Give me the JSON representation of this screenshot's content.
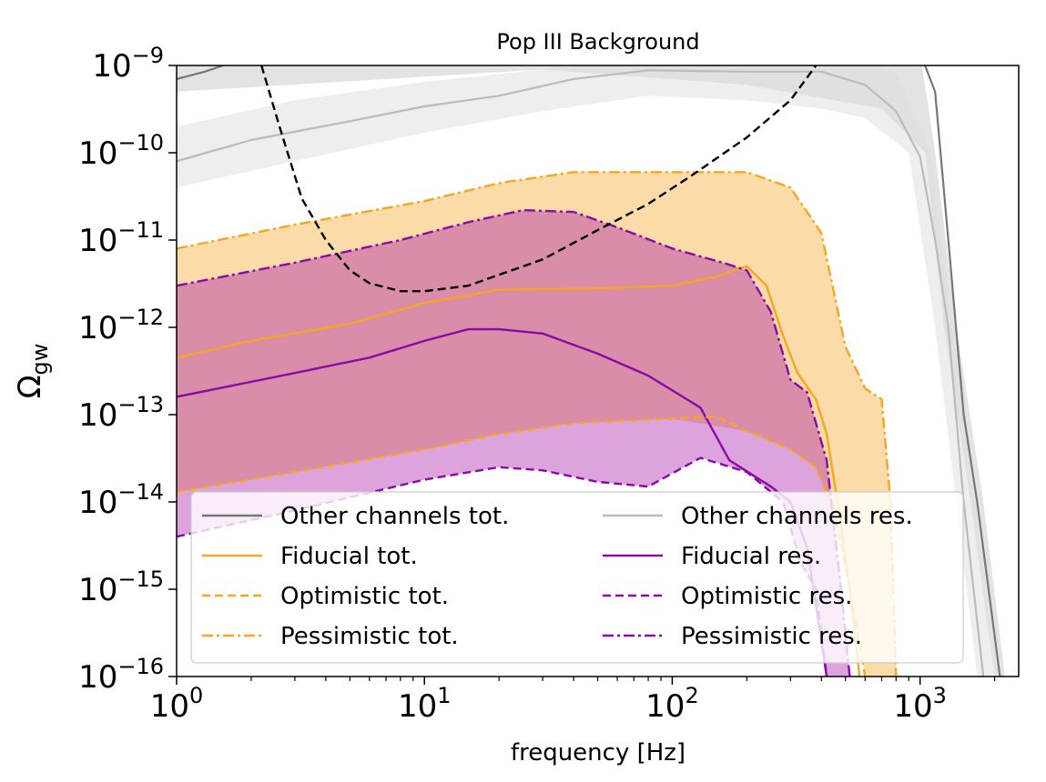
{
  "chart_data": {
    "type": "line",
    "title": "Pop III Background",
    "xlabel": "frequency [Hz]",
    "ylabel_main": "Ω",
    "ylabel_sub": "gw",
    "x_scale": "log",
    "y_scale": "log",
    "xlim": [
      1,
      2500
    ],
    "ylim": [
      1e-16,
      1e-09
    ],
    "x_ticks": [
      {
        "value": 1,
        "base": "10",
        "exp": "0"
      },
      {
        "value": 10,
        "base": "10",
        "exp": "1"
      },
      {
        "value": 100,
        "base": "10",
        "exp": "2"
      },
      {
        "value": 1000,
        "base": "10",
        "exp": "3"
      }
    ],
    "y_ticks": [
      {
        "value": 1e-16,
        "base": "10",
        "exp": "−16"
      },
      {
        "value": 1e-15,
        "base": "10",
        "exp": "−15"
      },
      {
        "value": 1e-14,
        "base": "10",
        "exp": "−14"
      },
      {
        "value": 1e-13,
        "base": "10",
        "exp": "−13"
      },
      {
        "value": 1e-12,
        "base": "10",
        "exp": "−12"
      },
      {
        "value": 1e-11,
        "base": "10",
        "exp": "−11"
      },
      {
        "value": 1e-10,
        "base": "10",
        "exp": "−10"
      },
      {
        "value": 1e-09,
        "base": "10",
        "exp": "−9"
      }
    ],
    "legend_position": "lower-right",
    "legend": [
      {
        "label": "Other channels tot.",
        "color": "#777777",
        "dash": "solid"
      },
      {
        "label": "Other channels res.",
        "color": "#bbbbbb",
        "dash": "solid"
      },
      {
        "label": "Fiducial tot.",
        "color": "#f5a623",
        "dash": "solid"
      },
      {
        "label": "Fiducial res.",
        "color": "#8b0aa5",
        "dash": "solid"
      },
      {
        "label": "Optimistic tot.",
        "color": "#f5a623",
        "dash": "dashed"
      },
      {
        "label": "Optimistic res.",
        "color": "#8b0aa5",
        "dash": "dashed"
      },
      {
        "label": "Pessimistic tot.",
        "color": "#f5a623",
        "dash": "dashdot"
      },
      {
        "label": "Pessimistic res.",
        "color": "#8b0aa5",
        "dash": "dashdot"
      }
    ],
    "bands": [
      {
        "name": "Other channels tot. band",
        "color": "#cccccc",
        "opacity": 0.55,
        "upper": [
          [
            1,
            1.4e-09
          ],
          [
            50,
            1.4e-09
          ],
          [
            1000,
            1.4e-09
          ],
          [
            1150,
            1e-10
          ],
          [
            1400,
            1e-12
          ],
          [
            1800,
            1e-14
          ],
          [
            2200,
            1e-16
          ]
        ],
        "lower": [
          [
            2000,
            1e-16
          ],
          [
            1600,
            1e-14
          ],
          [
            1250,
            1e-12
          ],
          [
            1050,
            1e-10
          ],
          [
            700,
            3.2e-10
          ],
          [
            200,
            6e-10
          ],
          [
            30,
            9e-10
          ],
          [
            1,
            5e-10
          ]
        ]
      },
      {
        "name": "Other channels res. band",
        "color": "#dddddd",
        "opacity": 0.5,
        "upper": [
          [
            1,
            2e-10
          ],
          [
            3,
            4e-10
          ],
          [
            10,
            6.5e-10
          ],
          [
            30,
            9e-10
          ],
          [
            80,
            1.4e-09
          ],
          [
            500,
            1.4e-09
          ],
          [
            800,
            8e-10
          ],
          [
            1100,
            1e-10
          ],
          [
            1350,
            1e-12
          ],
          [
            1650,
            1e-14
          ],
          [
            2000,
            1e-16
          ]
        ],
        "lower": [
          [
            1700,
            1e-16
          ],
          [
            1400,
            1e-14
          ],
          [
            1150,
            1e-12
          ],
          [
            900,
            1e-10
          ],
          [
            600,
            2.5e-10
          ],
          [
            400,
            3.2e-10
          ],
          [
            200,
            4e-10
          ],
          [
            80,
            4.5e-10
          ],
          [
            30,
            3e-10
          ],
          [
            10,
            1.7e-10
          ],
          [
            3,
            8e-11
          ],
          [
            1,
            4e-11
          ]
        ]
      },
      {
        "name": "Total band",
        "color": "#f5a623",
        "opacity": 0.4,
        "upper": [
          [
            1,
            8e-12
          ],
          [
            3,
            1.5e-11
          ],
          [
            10,
            2.8e-11
          ],
          [
            20,
            4.5e-11
          ],
          [
            40,
            6e-11
          ],
          [
            80,
            6e-11
          ],
          [
            200,
            6e-11
          ],
          [
            300,
            4e-11
          ],
          [
            400,
            1.2e-11
          ],
          [
            500,
            6e-13
          ],
          [
            600,
            2e-13
          ],
          [
            700,
            1.5e-13
          ],
          [
            760,
            1e-14
          ],
          [
            800,
            1e-16
          ]
        ],
        "lower": [
          [
            600,
            1e-16
          ],
          [
            520,
            1e-15
          ],
          [
            450,
            8e-15
          ],
          [
            380,
            2.5e-14
          ],
          [
            300,
            4e-14
          ],
          [
            200,
            6.5e-14
          ],
          [
            100,
            9e-14
          ],
          [
            40,
            8e-14
          ],
          [
            20,
            6e-14
          ],
          [
            10,
            4e-14
          ],
          [
            3,
            2.2e-14
          ],
          [
            1,
            1.3e-14
          ]
        ]
      },
      {
        "name": "Residual band",
        "color": "#a81aab",
        "opacity": 0.4,
        "upper": [
          [
            1,
            3e-12
          ],
          [
            3,
            5.5e-12
          ],
          [
            8,
            1e-11
          ],
          [
            15,
            1.6e-11
          ],
          [
            25,
            2.2e-11
          ],
          [
            40,
            2.1e-11
          ],
          [
            60,
            1.4e-11
          ],
          [
            100,
            8e-12
          ],
          [
            160,
            5.5e-12
          ],
          [
            200,
            4.5e-12
          ],
          [
            250,
            1.5e-12
          ],
          [
            300,
            2.5e-13
          ],
          [
            350,
            1.8e-13
          ],
          [
            420,
            3e-14
          ],
          [
            480,
            1e-15
          ],
          [
            520,
            1e-16
          ]
        ],
        "lower": [
          [
            420,
            1e-16
          ],
          [
            380,
            1e-15
          ],
          [
            330,
            2e-15
          ],
          [
            280,
            1e-14
          ],
          [
            200,
            2.2e-14
          ],
          [
            130,
            3.2e-14
          ],
          [
            80,
            1.5e-14
          ],
          [
            50,
            1.7e-14
          ],
          [
            30,
            2.3e-14
          ],
          [
            20,
            2.5e-14
          ],
          [
            10,
            1.8e-14
          ],
          [
            3,
            8e-15
          ],
          [
            1,
            4e-15
          ]
        ]
      }
    ],
    "series": [
      {
        "name": "Other channels tot.",
        "color": "#777777",
        "dash": "solid",
        "width": 2.2,
        "points": [
          [
            1,
            7e-10
          ],
          [
            1.3,
            8.5e-10
          ],
          [
            1.7,
            1.1e-09
          ],
          [
            3,
            1.4e-09
          ],
          [
            10,
            1.4e-09
          ],
          [
            1000,
            1.4e-09
          ],
          [
            1150,
            5e-10
          ],
          [
            1300,
            1e-11
          ],
          [
            1500,
            1e-13
          ],
          [
            1700,
            1e-14
          ],
          [
            2100,
            1e-16
          ]
        ]
      },
      {
        "name": "Other channels res.",
        "color": "#bbbbbb",
        "dash": "solid",
        "width": 2.2,
        "points": [
          [
            1,
            8e-11
          ],
          [
            2,
            1.4e-10
          ],
          [
            5,
            2.3e-10
          ],
          [
            10,
            3.4e-10
          ],
          [
            20,
            4.5e-10
          ],
          [
            40,
            7e-10
          ],
          [
            80,
            8.8e-10
          ],
          [
            200,
            8.5e-10
          ],
          [
            400,
            8.5e-10
          ],
          [
            600,
            6e-10
          ],
          [
            800,
            3e-10
          ],
          [
            1000,
            9e-11
          ],
          [
            1150,
            1e-11
          ],
          [
            1300,
            1e-12
          ],
          [
            1500,
            1e-14
          ],
          [
            1800,
            1e-16
          ]
        ]
      },
      {
        "name": "Fiducial tot.",
        "color": "#f5a623",
        "dash": "solid",
        "width": 2.4,
        "points": [
          [
            1,
            4.5e-13
          ],
          [
            2,
            7e-13
          ],
          [
            5,
            1.1e-12
          ],
          [
            10,
            1.9e-12
          ],
          [
            20,
            2.7e-12
          ],
          [
            50,
            2.8e-12
          ],
          [
            100,
            3e-12
          ],
          [
            150,
            3.8e-12
          ],
          [
            200,
            5e-12
          ],
          [
            240,
            3e-12
          ],
          [
            280,
            8e-13
          ],
          [
            320,
            3e-13
          ],
          [
            380,
            1.5e-13
          ],
          [
            420,
            6e-14
          ],
          [
            470,
            8e-15
          ],
          [
            520,
            1e-15
          ],
          [
            570,
            1e-16
          ]
        ]
      },
      {
        "name": "Fiducial res.",
        "color": "#8b0aa5",
        "dash": "solid",
        "width": 2.4,
        "points": [
          [
            1,
            1.6e-13
          ],
          [
            3,
            3e-13
          ],
          [
            6,
            4.5e-13
          ],
          [
            10,
            7e-13
          ],
          [
            15,
            9.5e-13
          ],
          [
            20,
            9.5e-13
          ],
          [
            30,
            8.5e-13
          ],
          [
            50,
            5e-13
          ],
          [
            80,
            2.8e-13
          ],
          [
            130,
            1.2e-13
          ],
          [
            170,
            3e-14
          ],
          [
            250,
            1.5e-14
          ],
          [
            300,
            1e-14
          ],
          [
            350,
            3e-15
          ],
          [
            420,
            1e-16
          ]
        ]
      },
      {
        "name": "Optimistic tot.",
        "color": "#f5a623",
        "dash": "dashed",
        "width": 2.4,
        "points": [
          [
            1,
            1.3e-14
          ],
          [
            3,
            2.2e-14
          ],
          [
            10,
            4e-14
          ],
          [
            20,
            6e-14
          ],
          [
            40,
            8e-14
          ],
          [
            100,
            9e-14
          ],
          [
            150,
            9.5e-14
          ],
          [
            200,
            6.5e-14
          ],
          [
            300,
            4e-14
          ],
          [
            380,
            2.5e-14
          ],
          [
            450,
            8e-15
          ],
          [
            520,
            1e-15
          ],
          [
            600,
            1e-16
          ]
        ]
      },
      {
        "name": "Optimistic res.",
        "color": "#8b0aa5",
        "dash": "dashed",
        "width": 2.4,
        "points": [
          [
            1,
            4e-15
          ],
          [
            3,
            8e-15
          ],
          [
            10,
            1.8e-14
          ],
          [
            20,
            2.5e-14
          ],
          [
            30,
            2.3e-14
          ],
          [
            50,
            1.7e-14
          ],
          [
            80,
            1.5e-14
          ],
          [
            130,
            3.2e-14
          ],
          [
            200,
            2.2e-14
          ],
          [
            280,
            1e-14
          ],
          [
            330,
            2e-15
          ],
          [
            380,
            1e-15
          ],
          [
            420,
            1e-16
          ]
        ]
      },
      {
        "name": "Pessimistic tot.",
        "color": "#f5a623",
        "dash": "dashdot",
        "width": 2.4,
        "points": [
          [
            1,
            8e-12
          ],
          [
            3,
            1.5e-11
          ],
          [
            10,
            2.8e-11
          ],
          [
            20,
            4.5e-11
          ],
          [
            40,
            6e-11
          ],
          [
            80,
            6e-11
          ],
          [
            200,
            6e-11
          ],
          [
            300,
            4e-11
          ],
          [
            400,
            1.2e-11
          ],
          [
            500,
            6e-13
          ],
          [
            600,
            2e-13
          ],
          [
            700,
            1.5e-13
          ],
          [
            760,
            1e-14
          ],
          [
            800,
            1e-16
          ]
        ]
      },
      {
        "name": "Pessimistic res.",
        "color": "#8b0aa5",
        "dash": "dashdot",
        "width": 2.4,
        "points": [
          [
            1,
            3e-12
          ],
          [
            3,
            5.5e-12
          ],
          [
            8,
            1e-11
          ],
          [
            15,
            1.6e-11
          ],
          [
            25,
            2.2e-11
          ],
          [
            40,
            2.1e-11
          ],
          [
            60,
            1.4e-11
          ],
          [
            100,
            8e-12
          ],
          [
            160,
            5.5e-12
          ],
          [
            200,
            4.5e-12
          ],
          [
            250,
            1.5e-12
          ],
          [
            300,
            2.5e-13
          ],
          [
            350,
            1.8e-13
          ],
          [
            420,
            3e-14
          ],
          [
            480,
            1e-15
          ],
          [
            520,
            1e-16
          ]
        ]
      },
      {
        "name": "Sensitivity curve",
        "color": "#000000",
        "dash": "dashed",
        "width": 2.4,
        "points": [
          [
            2.2,
            1e-09
          ],
          [
            2.6,
            2e-10
          ],
          [
            3.2,
            3e-11
          ],
          [
            4,
            1e-11
          ],
          [
            5,
            4.5e-12
          ],
          [
            6,
            3.2e-12
          ],
          [
            8,
            2.6e-12
          ],
          [
            10,
            2.6e-12
          ],
          [
            15,
            3e-12
          ],
          [
            20,
            4e-12
          ],
          [
            30,
            6e-12
          ],
          [
            50,
            1.3e-11
          ],
          [
            80,
            2.6e-11
          ],
          [
            120,
            5.5e-11
          ],
          [
            200,
            1.5e-10
          ],
          [
            300,
            4e-10
          ],
          [
            380,
            1e-09
          ]
        ]
      }
    ]
  }
}
